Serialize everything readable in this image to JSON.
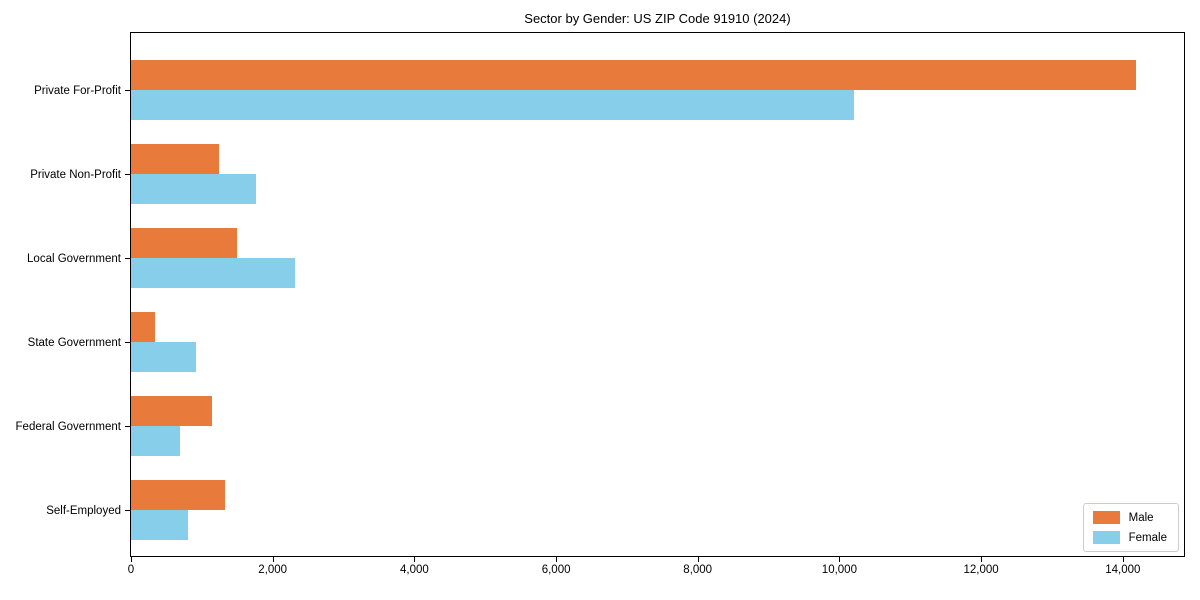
{
  "chart_data": {
    "type": "bar",
    "orientation": "horizontal",
    "title": "Sector by Gender: US ZIP Code 91910 (2024)",
    "xlabel": "",
    "ylabel": "",
    "grid": false,
    "legend_position": "lower right",
    "xlim": [
      0,
      14892
    ],
    "categories": [
      "Private For-Profit",
      "Private Non-Profit",
      "Local Government",
      "State Government",
      "Federal Government",
      "Self-Employed"
    ],
    "series": [
      {
        "name": "Male",
        "color": "#e87a3c",
        "values": [
          14183,
          1240,
          1500,
          340,
          1140,
          1330
        ]
      },
      {
        "name": "Female",
        "color": "#87ceeb",
        "values": [
          10200,
          1760,
          2310,
          920,
          690,
          810
        ]
      }
    ],
    "xticks": [
      {
        "value": 0,
        "label": "0"
      },
      {
        "value": 2000,
        "label": "2,000"
      },
      {
        "value": 4000,
        "label": "4,000"
      },
      {
        "value": 6000,
        "label": "6,000"
      },
      {
        "value": 8000,
        "label": "8,000"
      },
      {
        "value": 10000,
        "label": "10,000"
      },
      {
        "value": 12000,
        "label": "12,000"
      },
      {
        "value": 14000,
        "label": "14,000"
      }
    ]
  }
}
